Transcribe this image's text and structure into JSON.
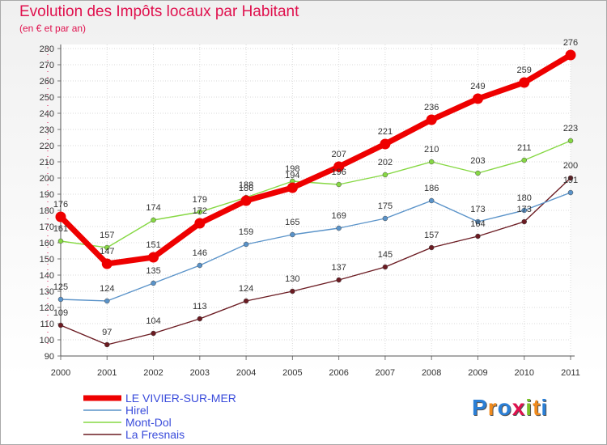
{
  "chart_data": {
    "type": "line",
    "title": "Evolution des Impôts locaux par Habitant",
    "subtitle": "(en € et par an)",
    "xlabel": "",
    "ylabel": "",
    "x": [
      "2000",
      "2001",
      "2002",
      "2003",
      "2004",
      "2005",
      "2006",
      "2007",
      "2008",
      "2009",
      "2010",
      "2011"
    ],
    "ylim": [
      90,
      280
    ],
    "yticks": [
      90,
      100,
      110,
      120,
      130,
      140,
      150,
      160,
      170,
      180,
      190,
      200,
      210,
      220,
      230,
      240,
      250,
      260,
      270,
      280
    ],
    "grid": true,
    "legend_position": "bottom-left",
    "series": [
      {
        "name": "LE VIVIER-SUR-MER",
        "color": "#ee0000",
        "values": [
          176,
          147,
          151,
          172,
          186,
          194,
          207,
          221,
          236,
          249,
          259,
          276
        ]
      },
      {
        "name": "Hirel",
        "color": "#5a93c9",
        "values": [
          125,
          124,
          135,
          146,
          159,
          165,
          169,
          175,
          186,
          173,
          180,
          191
        ]
      },
      {
        "name": "Mont-Dol",
        "color": "#86d843",
        "values": [
          161,
          157,
          174,
          179,
          188,
          198,
          196,
          202,
          210,
          203,
          211,
          223
        ]
      },
      {
        "name": "La Fresnais",
        "color": "#6b1b22",
        "values": [
          109,
          97,
          104,
          113,
          124,
          130,
          137,
          145,
          157,
          164,
          173,
          200
        ]
      }
    ]
  },
  "logo": {
    "text": "Proxiti",
    "letters": [
      "P",
      "r",
      "o",
      "x",
      "i",
      "t",
      "i"
    ],
    "colors": [
      "#2b7fd6",
      "#f08a1c",
      "#2b7fd6",
      "#e0114e",
      "#7bbf2a",
      "#f08a1c",
      "#2b7fd6"
    ]
  }
}
